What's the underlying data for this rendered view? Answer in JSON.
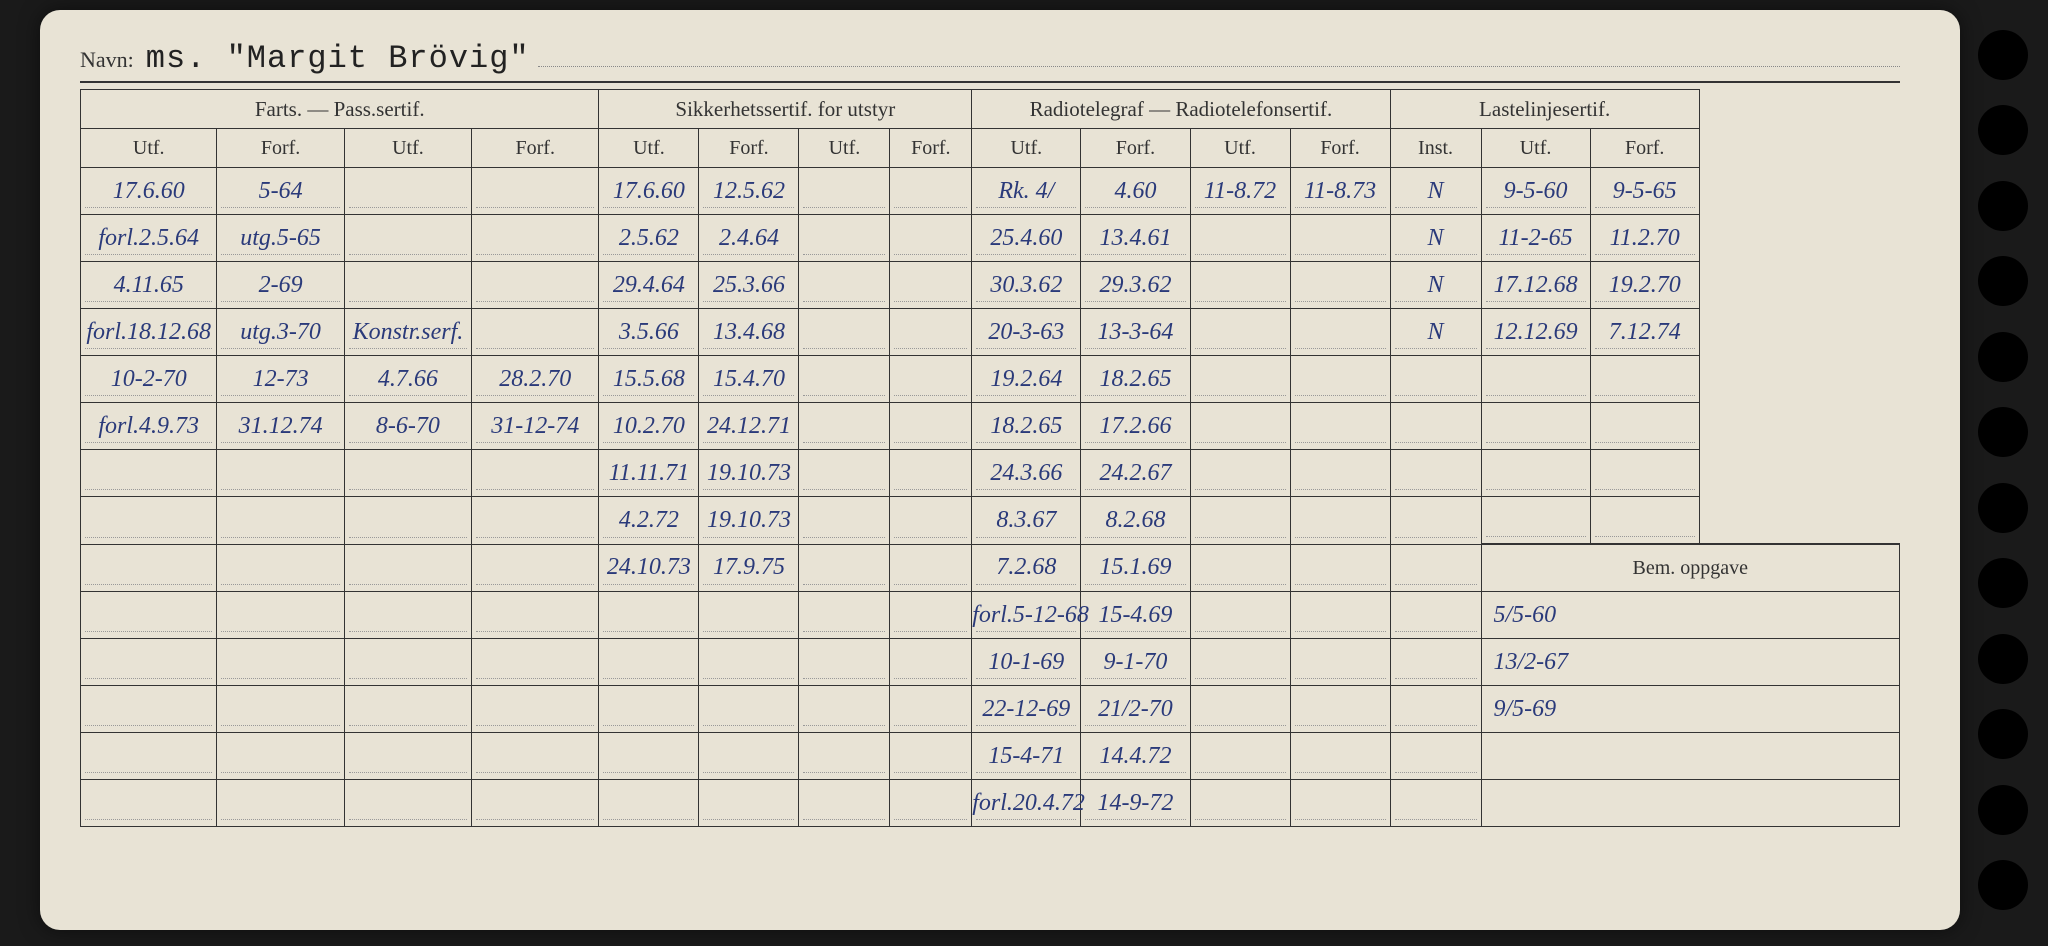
{
  "navn_label": "Navn:",
  "navn_value": "ms. \"Margit Brövig\"",
  "headers": {
    "group1": "Farts. — Pass.sertif.",
    "group2": "Sikkerhetssertif. for utstyr",
    "group3": "Radiotelegraf — Radiotelefonsertif.",
    "group4": "Lastelinjesertif.",
    "utf": "Utf.",
    "forf": "Forf.",
    "inst": "Inst."
  },
  "bem_label": "Bem. oppgave",
  "rows": [
    {
      "c": [
        "17.6.60",
        "5-64",
        "",
        "",
        "17.6.60",
        "12.5.62",
        "",
        "",
        "Rk. 4/",
        "4.60",
        "11-8.72",
        "11-8.73",
        "N",
        "9-5-60",
        "9-5-65"
      ]
    },
    {
      "c": [
        "forl.2.5.64",
        "utg.5-65",
        "",
        "",
        "2.5.62",
        "2.4.64",
        "",
        "",
        "25.4.60",
        "13.4.61",
        "",
        "",
        "N",
        "11-2-65",
        "11.2.70"
      ]
    },
    {
      "c": [
        "4.11.65",
        "2-69",
        "",
        "",
        "29.4.64",
        "25.3.66",
        "",
        "",
        "30.3.62",
        "29.3.62",
        "",
        "",
        "N",
        "17.12.68",
        "19.2.70"
      ]
    },
    {
      "c": [
        "forl.18.12.68",
        "utg.3-70",
        "Konstr.serf.",
        "",
        "3.5.66",
        "13.4.68",
        "",
        "",
        "20-3-63",
        "13-3-64",
        "",
        "",
        "N",
        "12.12.69",
        "7.12.74"
      ]
    },
    {
      "c": [
        "10-2-70",
        "12-73",
        "4.7.66",
        "28.2.70",
        "15.5.68",
        "15.4.70",
        "",
        "",
        "19.2.64",
        "18.2.65",
        "",
        "",
        "",
        "",
        ""
      ]
    },
    {
      "c": [
        "forl.4.9.73",
        "31.12.74",
        "8-6-70",
        "31-12-74",
        "10.2.70",
        "24.12.71",
        "",
        "",
        "18.2.65",
        "17.2.66",
        "",
        "",
        "",
        "",
        ""
      ]
    },
    {
      "c": [
        "",
        "",
        "",
        "",
        "11.11.71",
        "19.10.73",
        "",
        "",
        "24.3.66",
        "24.2.67",
        "",
        "",
        "",
        "",
        ""
      ]
    },
    {
      "c": [
        "",
        "",
        "",
        "",
        "4.2.72",
        "19.10.73",
        "",
        "",
        "8.3.67",
        "8.2.68",
        "",
        "",
        "",
        "",
        ""
      ]
    }
  ],
  "rows_after_bem": [
    {
      "c": [
        "",
        "",
        "",
        "",
        "24.10.73",
        "17.9.75",
        "",
        "",
        "7.2.68",
        "15.1.69",
        "",
        "",
        ""
      ],
      "bem": ""
    },
    {
      "c": [
        "",
        "",
        "",
        "",
        "",
        "",
        "",
        "",
        "forl.5-12-68",
        "15-4.69",
        "",
        "",
        ""
      ],
      "bem": "5/5-60"
    },
    {
      "c": [
        "",
        "",
        "",
        "",
        "",
        "",
        "",
        "",
        "10-1-69",
        "9-1-70",
        "",
        "",
        ""
      ],
      "bem": "13/2-67"
    },
    {
      "c": [
        "",
        "",
        "",
        "",
        "",
        "",
        "",
        "",
        "22-12-69",
        "21/2-70",
        "",
        "",
        ""
      ],
      "bem": "9/5-69"
    },
    {
      "c": [
        "",
        "",
        "",
        "",
        "",
        "",
        "",
        "",
        "15-4-71",
        "14.4.72",
        "",
        "",
        ""
      ],
      "bem": ""
    },
    {
      "c": [
        "",
        "",
        "",
        "",
        "",
        "",
        "",
        "",
        "forl.20.4.72",
        "14-9-72",
        "",
        "",
        ""
      ],
      "bem": ""
    }
  ]
}
